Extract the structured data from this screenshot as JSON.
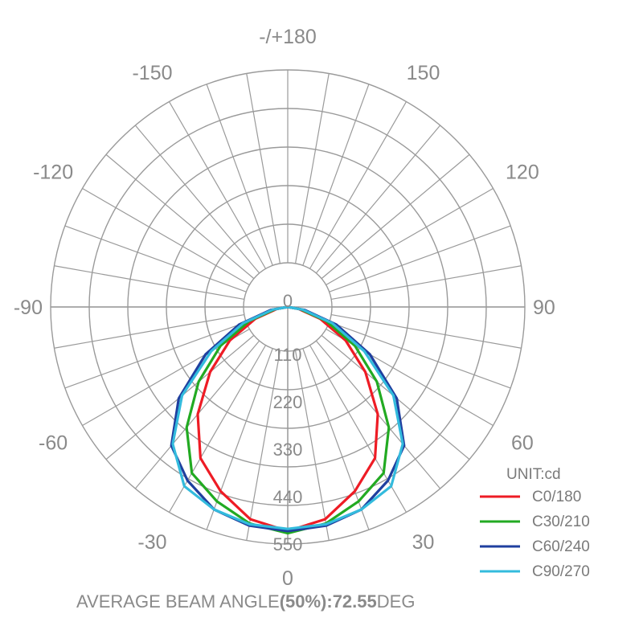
{
  "chart_data": {
    "type": "polar",
    "unit_label": "UNIT:cd",
    "angle_labels": [
      "-/+180",
      "150",
      "120",
      "90",
      "60",
      "30",
      "0",
      "-30",
      "-60",
      "-90",
      "-120",
      "-150"
    ],
    "angle_values": [
      180,
      150,
      120,
      90,
      60,
      30,
      0,
      -30,
      -60,
      -90,
      -120,
      -150
    ],
    "radial_ticks": [
      0,
      110,
      220,
      330,
      440,
      550
    ],
    "radial_tick_labels": [
      "0",
      "110",
      "220",
      "330",
      "440",
      "550"
    ],
    "rmax": 550,
    "series": [
      {
        "name": "C0/180",
        "color": "#ee1c25",
        "angles": [
          0,
          10,
          20,
          30,
          40,
          50,
          60,
          70,
          80,
          90
        ],
        "values": [
          520,
          500,
          455,
          405,
          325,
          235,
          155,
          80,
          25,
          0
        ]
      },
      {
        "name": "C30/210",
        "color": "#22aa22",
        "angles": [
          0,
          10,
          20,
          30,
          40,
          50,
          60,
          70,
          80,
          90
        ],
        "values": [
          525,
          510,
          480,
          445,
          365,
          270,
          180,
          95,
          30,
          0
        ]
      },
      {
        "name": "C60/240",
        "color": "#1f3f9f",
        "angles": [
          0,
          10,
          20,
          30,
          40,
          50,
          60,
          70,
          80,
          90
        ],
        "values": [
          520,
          515,
          500,
          465,
          420,
          330,
          220,
          120,
          40,
          0
        ]
      },
      {
        "name": "C90/270",
        "color": "#33bbdd",
        "angles": [
          0,
          10,
          20,
          30,
          40,
          50,
          60,
          70,
          80,
          90
        ],
        "values": [
          515,
          512,
          500,
          480,
          415,
          320,
          205,
          110,
          35,
          0
        ]
      }
    ]
  },
  "footer": {
    "prefix": "AVERAGE BEAM ANGLE",
    "bold": "(50%):72.55",
    "suffix": "DEG"
  }
}
